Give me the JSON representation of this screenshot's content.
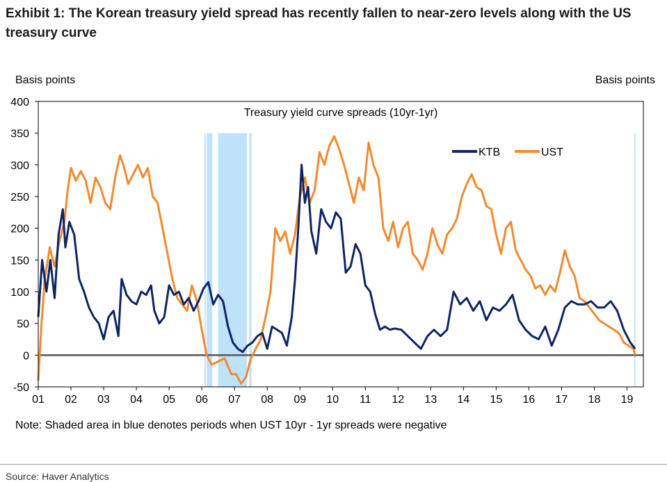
{
  "title": "Exhibit 1: The Korean treasury yield spread has recently fallen to near-zero levels along with the US treasury curve",
  "left_unit": "Basis points",
  "right_unit": "Basis points",
  "note": "Note: Shaded area in blue denotes periods when UST  10yr - 1yr spreads were negative",
  "source": "Source: Haver Analytics",
  "chart_data": {
    "type": "line",
    "title": "Treasury yield curve spreads (10yr-1yr)",
    "xlabel": "",
    "ylabel": "Basis points",
    "xlim": [
      2001.0,
      2019.5
    ],
    "ylim": [
      -50,
      400
    ],
    "yticks": [
      -50,
      0,
      50,
      100,
      150,
      200,
      250,
      300,
      350,
      400
    ],
    "xticks": [
      {
        "x": 2001,
        "label": "01"
      },
      {
        "x": 2002,
        "label": "02"
      },
      {
        "x": 2003,
        "label": "03"
      },
      {
        "x": 2004,
        "label": "04"
      },
      {
        "x": 2005,
        "label": "05"
      },
      {
        "x": 2006,
        "label": "06"
      },
      {
        "x": 2007,
        "label": "07"
      },
      {
        "x": 2008,
        "label": "08"
      },
      {
        "x": 2009,
        "label": "09"
      },
      {
        "x": 2010,
        "label": "10"
      },
      {
        "x": 2011,
        "label": "11"
      },
      {
        "x": 2012,
        "label": "12"
      },
      {
        "x": 2013,
        "label": "13"
      },
      {
        "x": 2014,
        "label": "14"
      },
      {
        "x": 2015,
        "label": "15"
      },
      {
        "x": 2016,
        "label": "16"
      },
      {
        "x": 2017,
        "label": "17"
      },
      {
        "x": 2018,
        "label": "18"
      },
      {
        "x": 2019,
        "label": "19"
      }
    ],
    "legend": {
      "placement": "top-right"
    },
    "zero_line": true,
    "shaded_periods": [
      {
        "start": 2006.08,
        "end": 2006.12
      },
      {
        "start": 2006.15,
        "end": 2006.32
      },
      {
        "start": 2006.5,
        "end": 2007.38
      },
      {
        "start": 2007.45,
        "end": 2007.52
      },
      {
        "start": 2019.22,
        "end": 2019.26
      }
    ],
    "series": [
      {
        "name": "KTB",
        "color": "#0d2463",
        "x": [
          2001.0,
          2001.12,
          2001.25,
          2001.37,
          2001.5,
          2001.62,
          2001.75,
          2001.83,
          2001.95,
          2002.1,
          2002.25,
          2002.4,
          2002.55,
          2002.7,
          2002.85,
          2003.0,
          2003.15,
          2003.3,
          2003.45,
          2003.55,
          2003.7,
          2003.85,
          2004.0,
          2004.15,
          2004.3,
          2004.45,
          2004.55,
          2004.7,
          2004.85,
          2005.0,
          2005.15,
          2005.3,
          2005.45,
          2005.6,
          2005.75,
          2005.9,
          2006.05,
          2006.2,
          2006.35,
          2006.5,
          2006.65,
          2006.8,
          2006.95,
          2007.1,
          2007.25,
          2007.4,
          2007.55,
          2007.7,
          2007.85,
          2008.0,
          2008.15,
          2008.3,
          2008.45,
          2008.6,
          2008.75,
          2008.85,
          2008.95,
          2009.05,
          2009.15,
          2009.25,
          2009.35,
          2009.5,
          2009.65,
          2009.8,
          2009.95,
          2010.1,
          2010.25,
          2010.4,
          2010.55,
          2010.7,
          2010.85,
          2011.0,
          2011.15,
          2011.3,
          2011.45,
          2011.6,
          2011.75,
          2011.9,
          2012.1,
          2012.3,
          2012.5,
          2012.7,
          2012.9,
          2013.1,
          2013.3,
          2013.5,
          2013.7,
          2013.9,
          2014.1,
          2014.3,
          2014.5,
          2014.7,
          2014.9,
          2015.1,
          2015.3,
          2015.5,
          2015.7,
          2015.9,
          2016.1,
          2016.3,
          2016.5,
          2016.7,
          2016.9,
          2017.1,
          2017.3,
          2017.5,
          2017.7,
          2017.9,
          2018.1,
          2018.3,
          2018.5,
          2018.7,
          2018.9,
          2019.1,
          2019.25
        ],
        "values": [
          60,
          150,
          100,
          150,
          90,
          190,
          230,
          170,
          210,
          190,
          120,
          100,
          75,
          60,
          50,
          25,
          60,
          70,
          30,
          120,
          95,
          85,
          80,
          100,
          95,
          110,
          70,
          50,
          60,
          110,
          95,
          100,
          80,
          90,
          70,
          85,
          105,
          115,
          80,
          95,
          85,
          45,
          20,
          10,
          5,
          15,
          20,
          30,
          35,
          10,
          45,
          40,
          35,
          15,
          60,
          120,
          200,
          300,
          240,
          265,
          195,
          160,
          230,
          210,
          200,
          225,
          215,
          130,
          140,
          175,
          160,
          110,
          100,
          65,
          40,
          45,
          40,
          42,
          40,
          30,
          20,
          10,
          30,
          40,
          30,
          40,
          100,
          80,
          90,
          70,
          85,
          55,
          75,
          70,
          80,
          95,
          55,
          40,
          30,
          25,
          45,
          15,
          40,
          75,
          85,
          80,
          80,
          85,
          75,
          75,
          85,
          70,
          40,
          20,
          10
        ]
      },
      {
        "name": "UST",
        "color": "#f08a2c",
        "x": [
          2001.0,
          2001.1,
          2001.2,
          2001.35,
          2001.5,
          2001.65,
          2001.8,
          2001.9,
          2002.0,
          2002.15,
          2002.3,
          2002.45,
          2002.6,
          2002.75,
          2002.9,
          2003.05,
          2003.2,
          2003.35,
          2003.5,
          2003.6,
          2003.75,
          2003.9,
          2004.05,
          2004.2,
          2004.35,
          2004.5,
          2004.65,
          2004.8,
          2004.95,
          2005.1,
          2005.25,
          2005.4,
          2005.55,
          2005.7,
          2005.85,
          2006.0,
          2006.15,
          2006.3,
          2006.5,
          2006.7,
          2006.9,
          2007.05,
          2007.2,
          2007.35,
          2007.5,
          2007.65,
          2007.8,
          2007.95,
          2008.1,
          2008.25,
          2008.4,
          2008.55,
          2008.7,
          2008.85,
          2009.0,
          2009.15,
          2009.3,
          2009.45,
          2009.6,
          2009.75,
          2009.9,
          2010.05,
          2010.2,
          2010.35,
          2010.5,
          2010.65,
          2010.8,
          2010.95,
          2011.1,
          2011.25,
          2011.4,
          2011.55,
          2011.7,
          2011.85,
          2012.0,
          2012.15,
          2012.3,
          2012.45,
          2012.6,
          2012.75,
          2012.9,
          2013.05,
          2013.2,
          2013.35,
          2013.5,
          2013.65,
          2013.8,
          2013.95,
          2014.1,
          2014.25,
          2014.4,
          2014.55,
          2014.7,
          2014.85,
          2015.0,
          2015.15,
          2015.3,
          2015.45,
          2015.6,
          2015.75,
          2015.9,
          2016.05,
          2016.2,
          2016.35,
          2016.5,
          2016.65,
          2016.8,
          2016.95,
          2017.1,
          2017.25,
          2017.4,
          2017.55,
          2017.7,
          2017.85,
          2018.0,
          2018.15,
          2018.3,
          2018.45,
          2018.6,
          2018.75,
          2018.9,
          2019.05,
          2019.2,
          2019.25
        ],
        "values": [
          -40,
          50,
          120,
          170,
          140,
          180,
          210,
          260,
          295,
          275,
          290,
          275,
          240,
          280,
          265,
          240,
          230,
          280,
          315,
          300,
          270,
          285,
          300,
          280,
          295,
          250,
          240,
          200,
          160,
          120,
          90,
          80,
          70,
          110,
          85,
          40,
          0,
          -15,
          -10,
          -5,
          -30,
          -30,
          -45,
          -35,
          -5,
          10,
          25,
          60,
          100,
          200,
          180,
          195,
          160,
          190,
          250,
          280,
          240,
          260,
          320,
          300,
          330,
          345,
          325,
          300,
          270,
          240,
          280,
          260,
          335,
          300,
          280,
          200,
          180,
          210,
          170,
          200,
          210,
          160,
          150,
          135,
          160,
          200,
          175,
          160,
          190,
          200,
          215,
          250,
          270,
          285,
          265,
          260,
          235,
          230,
          190,
          160,
          200,
          210,
          165,
          150,
          135,
          125,
          105,
          110,
          95,
          110,
          100,
          130,
          165,
          140,
          125,
          90,
          85,
          75,
          65,
          55,
          50,
          45,
          40,
          35,
          20,
          15,
          10,
          0
        ]
      }
    ]
  }
}
